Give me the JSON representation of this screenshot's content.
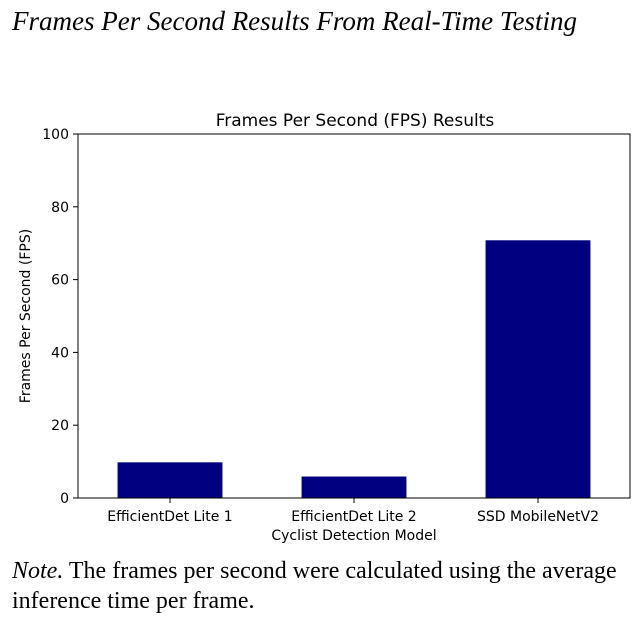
{
  "figure": {
    "title": "Frames Per Second Results From Real-Time Testing",
    "note_label": "Note.",
    "note_text": " The frames per second were calculated using the average inference time per frame."
  },
  "chart_data": {
    "type": "bar",
    "title": "Frames Per Second (FPS) Results",
    "xlabel": "Cyclist Detection Model",
    "ylabel": "Frames Per Second (FPS)",
    "categories": [
      "EfficientDet Lite 1",
      "EfficientDet Lite 2",
      "SSD MobileNetV2"
    ],
    "values": [
      9.8,
      5.9,
      70.8
    ],
    "ylim": [
      0,
      100
    ],
    "yticks": [
      0,
      20,
      40,
      60,
      80,
      100
    ],
    "grid": false,
    "bar_color": "#000080"
  }
}
